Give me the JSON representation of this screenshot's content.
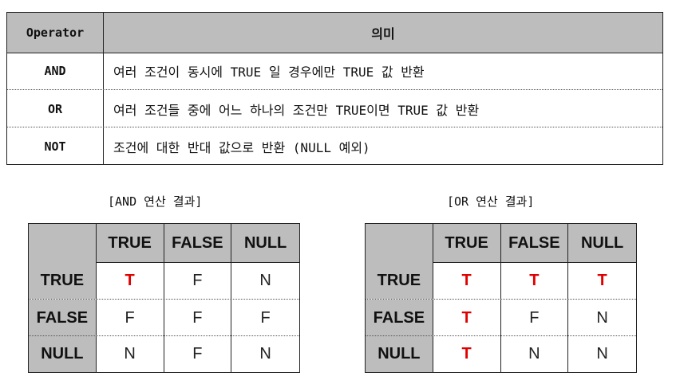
{
  "operator_table": {
    "headers": [
      "Operator",
      "의미"
    ],
    "rows": [
      {
        "operator": "AND",
        "meaning": "여러 조건이 동시에 TRUE 일 경우에만 TRUE 값 반환"
      },
      {
        "operator": "OR",
        "meaning": "여러 조건들 중에 어느 하나의 조건만 TRUE이면 TRUE 값 반환"
      },
      {
        "operator": "NOT",
        "meaning": "조건에 대한 반대 값으로 반환 (NULL 예외)"
      }
    ]
  },
  "and_table": {
    "caption": "[AND 연산 결과]",
    "columns": [
      "TRUE",
      "FALSE",
      "NULL"
    ],
    "rows": [
      {
        "label": "TRUE",
        "values": [
          "T",
          "F",
          "N"
        ]
      },
      {
        "label": "FALSE",
        "values": [
          "F",
          "F",
          "F"
        ]
      },
      {
        "label": "NULL",
        "values": [
          "N",
          "F",
          "N"
        ]
      }
    ]
  },
  "or_table": {
    "caption": "[OR 연산 결과]",
    "columns": [
      "TRUE",
      "FALSE",
      "NULL"
    ],
    "rows": [
      {
        "label": "TRUE",
        "values": [
          "T",
          "T",
          "T"
        ]
      },
      {
        "label": "FALSE",
        "values": [
          "T",
          "F",
          "N"
        ]
      },
      {
        "label": "NULL",
        "values": [
          "T",
          "N",
          "N"
        ]
      }
    ]
  },
  "colors": {
    "header_bg": "#bdbdbd",
    "true_value": "#e00000"
  }
}
